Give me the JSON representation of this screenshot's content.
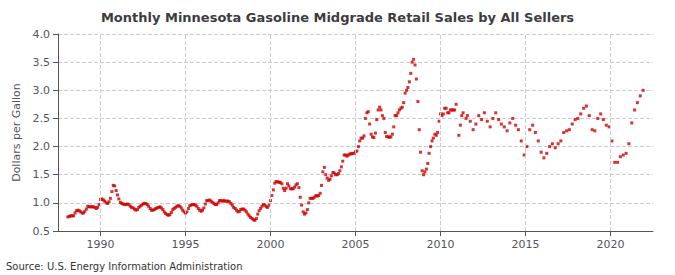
{
  "chart_data": {
    "type": "scatter",
    "title": "Monthly Minnesota Gasoline Midgrade Retail Sales by All Sellers",
    "ylabel": "Dollars per Gallon",
    "annotation": "Source: U.S. Energy Information Administration",
    "color": "#CC0000",
    "marker": "square",
    "grid": true,
    "xlim": [
      1987.5,
      2022.5
    ],
    "xticks": [
      1990,
      1995,
      2000,
      2005,
      2010,
      2015,
      2020
    ],
    "ylim": [
      0.5,
      4.0
    ],
    "yticks": [
      0.5,
      {
        "value": 1.0,
        "label": "1.0"
      },
      1.5,
      {
        "value": 2.0,
        "label": "2.0"
      },
      2.5,
      {
        "value": 3.0,
        "label": "3.0"
      },
      3.5,
      {
        "value": 4.0,
        "label": "4.0"
      }
    ],
    "x": [
      1988.08,
      1988.17,
      1988.25,
      1988.33,
      1988.42,
      1988.5,
      1988.58,
      1988.67,
      1988.75,
      1988.83,
      1988.92,
      1989.0,
      1989.08,
      1989.17,
      1989.25,
      1989.33,
      1989.42,
      1989.5,
      1989.58,
      1989.67,
      1989.75,
      1989.83,
      1989.92,
      1990.0,
      1990.08,
      1990.17,
      1990.25,
      1990.33,
      1990.42,
      1990.5,
      1990.58,
      1990.67,
      1990.75,
      1990.83,
      1990.92,
      1991.0,
      1991.08,
      1991.17,
      1991.25,
      1991.33,
      1991.42,
      1991.5,
      1991.58,
      1991.67,
      1991.75,
      1991.83,
      1991.92,
      1992.0,
      1992.08,
      1992.17,
      1992.25,
      1992.33,
      1992.42,
      1992.5,
      1992.58,
      1992.67,
      1992.75,
      1992.83,
      1992.92,
      1993.0,
      1993.08,
      1993.17,
      1993.25,
      1993.33,
      1993.42,
      1993.5,
      1993.58,
      1993.67,
      1993.75,
      1993.83,
      1993.92,
      1994.0,
      1994.08,
      1994.17,
      1994.25,
      1994.33,
      1994.42,
      1994.5,
      1994.58,
      1994.67,
      1994.75,
      1994.83,
      1994.92,
      1995.0,
      1995.08,
      1995.17,
      1995.25,
      1995.33,
      1995.42,
      1995.5,
      1995.58,
      1995.67,
      1995.75,
      1995.83,
      1995.92,
      1996.0,
      1996.08,
      1996.17,
      1996.25,
      1996.33,
      1996.42,
      1996.5,
      1996.58,
      1996.67,
      1996.75,
      1996.83,
      1996.92,
      1997.0,
      1997.08,
      1997.17,
      1997.25,
      1997.33,
      1997.42,
      1997.5,
      1997.58,
      1997.67,
      1997.75,
      1997.83,
      1997.92,
      1998.0,
      1998.08,
      1998.17,
      1998.25,
      1998.33,
      1998.42,
      1998.5,
      1998.58,
      1998.67,
      1998.75,
      1998.83,
      1998.92,
      1999.0,
      1999.08,
      1999.17,
      1999.25,
      1999.33,
      1999.42,
      1999.5,
      1999.58,
      1999.67,
      1999.75,
      1999.83,
      1999.92,
      2000.0,
      2000.08,
      2000.17,
      2000.25,
      2000.33,
      2000.42,
      2000.5,
      2000.58,
      2000.67,
      2000.75,
      2000.83,
      2000.92,
      2001.0,
      2001.08,
      2001.17,
      2001.25,
      2001.33,
      2001.42,
      2001.5,
      2001.58,
      2001.67,
      2001.75,
      2001.83,
      2001.92,
      2002.0,
      2002.08,
      2002.17,
      2002.25,
      2002.33,
      2002.42,
      2002.5,
      2002.58,
      2002.67,
      2002.75,
      2002.83,
      2002.92,
      2003.0,
      2003.08,
      2003.17,
      2003.25,
      2003.33,
      2003.42,
      2003.5,
      2003.58,
      2003.67,
      2003.75,
      2003.83,
      2003.92,
      2004.0,
      2004.08,
      2004.17,
      2004.25,
      2004.33,
      2004.42,
      2004.5,
      2004.58,
      2004.67,
      2004.75,
      2004.83,
      2004.92,
      2005.0,
      2005.08,
      2005.17,
      2005.25,
      2005.33,
      2005.42,
      2005.5,
      2005.58,
      2005.67,
      2005.75,
      2005.83,
      2005.92,
      2006.0,
      2006.08,
      2006.17,
      2006.25,
      2006.33,
      2006.42,
      2006.5,
      2006.58,
      2006.67,
      2006.75,
      2006.83,
      2006.92,
      2007.0,
      2007.08,
      2007.17,
      2007.25,
      2007.33,
      2007.42,
      2007.5,
      2007.58,
      2007.67,
      2007.75,
      2007.83,
      2007.92,
      2008.0,
      2008.08,
      2008.17,
      2008.25,
      2008.33,
      2008.42,
      2008.5,
      2008.58,
      2008.67,
      2008.75,
      2008.83,
      2008.92,
      2009.0,
      2009.08,
      2009.17,
      2009.25,
      2009.33,
      2009.42,
      2009.5,
      2009.58,
      2009.67,
      2009.75,
      2009.83,
      2009.92,
      2010.0,
      2010.08,
      2010.17,
      2010.25,
      2010.33,
      2010.42,
      2010.5,
      2010.58,
      2010.67,
      2010.75,
      2010.83,
      2010.92,
      2011.08,
      2011.17,
      2011.25,
      2011.33,
      2011.5,
      2011.58,
      2011.75,
      2011.92,
      2012.08,
      2012.25,
      2012.42,
      2012.58,
      2012.75,
      2012.92,
      2013.08,
      2013.25,
      2013.42,
      2013.58,
      2013.75,
      2013.92,
      2014.08,
      2014.25,
      2014.42,
      2014.58,
      2014.75,
      2014.92,
      2015.08,
      2015.25,
      2015.42,
      2015.58,
      2015.75,
      2015.92,
      2016.08,
      2016.25,
      2016.42,
      2016.58,
      2016.75,
      2016.92,
      2017.08,
      2017.25,
      2017.42,
      2017.58,
      2017.75,
      2017.92,
      2018.08,
      2018.25,
      2018.42,
      2018.58,
      2018.75,
      2018.92,
      2019.08,
      2019.25,
      2019.42,
      2019.58,
      2019.75,
      2019.92,
      2020.08,
      2020.25,
      2020.42,
      2020.58,
      2020.75,
      2020.92,
      2021.08,
      2021.25,
      2021.42,
      2021.58,
      2021.75,
      2021.92
    ],
    "values": [
      0.75,
      0.76,
      0.77,
      0.77,
      0.77,
      0.82,
      0.86,
      0.87,
      0.86,
      0.84,
      0.82,
      0.82,
      0.85,
      0.89,
      0.94,
      0.93,
      0.93,
      0.93,
      0.93,
      0.92,
      0.9,
      0.92,
      0.97,
      1.06,
      1.07,
      1.05,
      1.03,
      1.0,
      0.99,
      1.02,
      1.08,
      1.2,
      1.31,
      1.3,
      1.22,
      1.14,
      1.07,
      1.01,
      0.99,
      0.98,
      0.97,
      0.97,
      0.98,
      0.97,
      0.94,
      0.92,
      0.91,
      0.89,
      0.87,
      0.88,
      0.92,
      0.94,
      0.96,
      0.98,
      0.99,
      0.99,
      0.97,
      0.94,
      0.9,
      0.87,
      0.87,
      0.88,
      0.9,
      0.91,
      0.92,
      0.93,
      0.91,
      0.88,
      0.84,
      0.81,
      0.79,
      0.78,
      0.79,
      0.83,
      0.88,
      0.9,
      0.92,
      0.94,
      0.95,
      0.94,
      0.91,
      0.87,
      0.84,
      0.82,
      0.84,
      0.9,
      0.95,
      0.96,
      0.97,
      0.97,
      0.96,
      0.94,
      0.9,
      0.87,
      0.85,
      0.87,
      0.91,
      0.98,
      1.04,
      1.04,
      1.05,
      1.03,
      1.01,
      0.99,
      0.97,
      0.97,
      1.0,
      1.04,
      1.04,
      1.03,
      1.04,
      1.03,
      1.03,
      1.03,
      1.02,
      0.99,
      0.96,
      0.92,
      0.9,
      0.87,
      0.84,
      0.85,
      0.88,
      0.89,
      0.89,
      0.87,
      0.84,
      0.8,
      0.77,
      0.74,
      0.72,
      0.7,
      0.69,
      0.72,
      0.8,
      0.86,
      0.9,
      0.94,
      0.97,
      0.96,
      0.93,
      0.92,
      0.96,
      1.04,
      1.13,
      1.23,
      1.35,
      1.38,
      1.37,
      1.37,
      1.36,
      1.34,
      1.26,
      1.22,
      1.26,
      1.34,
      1.3,
      1.25,
      1.25,
      1.25,
      1.28,
      1.32,
      1.34,
      1.27,
      1.1,
      0.96,
      0.84,
      0.8,
      0.82,
      0.88,
      1.0,
      1.08,
      1.08,
      1.08,
      1.1,
      1.13,
      1.12,
      1.13,
      1.17,
      1.31,
      1.55,
      1.63,
      1.5,
      1.44,
      1.4,
      1.42,
      1.48,
      1.54,
      1.53,
      1.5,
      1.5,
      1.52,
      1.57,
      1.64,
      1.74,
      1.85,
      1.85,
      1.83,
      1.85,
      1.87,
      1.87,
      1.88,
      1.88,
      1.91,
      1.92,
      2.0,
      2.1,
      2.15,
      2.15,
      2.19,
      2.5,
      2.6,
      2.62,
      2.4,
      2.22,
      2.17,
      2.16,
      2.24,
      2.48,
      2.65,
      2.7,
      2.65,
      2.55,
      2.5,
      2.25,
      2.18,
      2.17,
      2.17,
      2.17,
      2.22,
      2.35,
      2.55,
      2.55,
      2.6,
      2.65,
      2.68,
      2.7,
      2.78,
      2.95,
      3.0,
      3.05,
      3.15,
      3.3,
      3.5,
      3.55,
      3.45,
      3.2,
      2.8,
      2.3,
      1.9,
      1.57,
      1.5,
      1.55,
      1.6,
      1.7,
      1.88,
      2.0,
      2.1,
      2.15,
      2.22,
      2.2,
      2.25,
      2.45,
      2.58,
      2.55,
      2.58,
      2.68,
      2.68,
      2.6,
      2.6,
      2.65,
      2.65,
      2.65,
      2.65,
      2.75,
      2.2,
      2.38,
      2.55,
      2.6,
      2.5,
      2.55,
      2.45,
      2.3,
      2.4,
      2.55,
      2.48,
      2.6,
      2.45,
      2.35,
      2.5,
      2.6,
      2.48,
      2.4,
      2.35,
      2.28,
      2.42,
      2.5,
      2.38,
      2.3,
      2.1,
      1.85,
      2.0,
      2.3,
      2.38,
      2.25,
      2.1,
      1.9,
      1.8,
      1.88,
      2.0,
      2.05,
      1.98,
      2.05,
      2.1,
      2.25,
      2.28,
      2.3,
      2.4,
      2.48,
      2.5,
      2.58,
      2.68,
      2.72,
      2.55,
      2.3,
      2.28,
      2.5,
      2.58,
      2.48,
      2.38,
      2.35,
      2.1,
      1.72,
      1.72,
      1.82,
      1.85,
      1.88,
      2.05,
      2.42,
      2.65,
      2.78,
      2.9,
      3.0
    ]
  }
}
